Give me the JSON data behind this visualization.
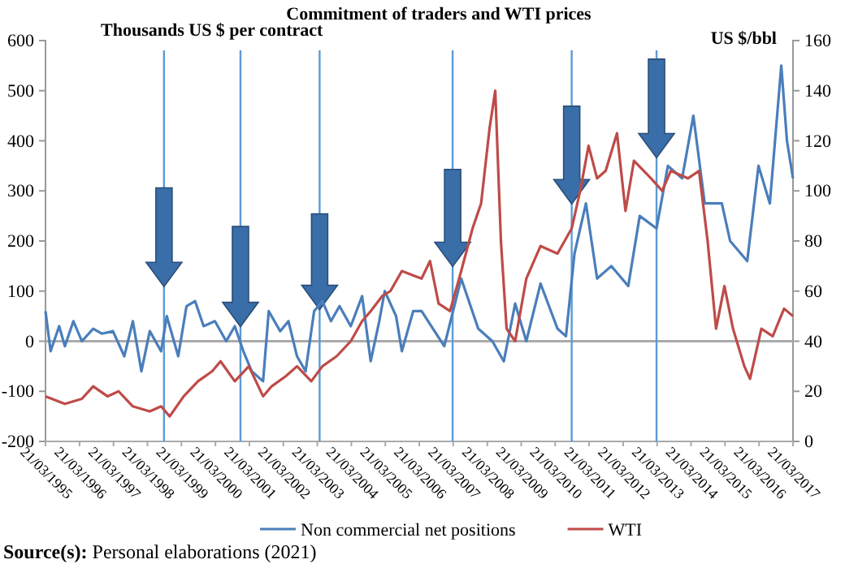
{
  "chart_data": {
    "type": "line",
    "title": "Commitment of traders and WTI prices",
    "ylabel": "Thousands US $ per contract",
    "y2label": "US $/bbl",
    "xlim": [
      "1995-03-21",
      "2017-03-21"
    ],
    "xticks": [
      {
        "value": "1995-03-21",
        "label": "21/03/1995"
      },
      {
        "value": "1996-03-21",
        "label": "21/03/1996"
      },
      {
        "value": "1997-03-21",
        "label": "21/03/1997"
      },
      {
        "value": "1998-03-21",
        "label": "21/03/1998"
      },
      {
        "value": "1999-03-21",
        "label": "21/03/1999"
      },
      {
        "value": "2000-03-21",
        "label": "21/03/2000"
      },
      {
        "value": "2001-03-21",
        "label": "21/03/2001"
      },
      {
        "value": "2002-03-21",
        "label": "21/03/2002"
      },
      {
        "value": "2003-03-21",
        "label": "21/03/2003"
      },
      {
        "value": "2004-03-21",
        "label": "21/03/2004"
      },
      {
        "value": "2005-03-21",
        "label": "21/03/2005"
      },
      {
        "value": "2006-03-21",
        "label": "21/03/2006"
      },
      {
        "value": "2007-03-21",
        "label": "21/03/2007"
      },
      {
        "value": "2008-03-21",
        "label": "21/03/2008"
      },
      {
        "value": "2009-03-21",
        "label": "21/03/2009"
      },
      {
        "value": "2010-03-21",
        "label": "21/03/2010"
      },
      {
        "value": "2011-03-21",
        "label": "21/03/2011"
      },
      {
        "value": "2012-03-21",
        "label": "21/03/2012"
      },
      {
        "value": "2013-03-21",
        "label": "21/03/2013"
      },
      {
        "value": "2014-03-21",
        "label": "21/03/2014"
      },
      {
        "value": "2015-03-21",
        "label": "21/03/2015"
      },
      {
        "value": "2016-03-21",
        "label": "21/03/2016"
      },
      {
        "value": "2017-03-21",
        "label": "21/03/2017"
      }
    ],
    "ylim": [
      -200,
      600
    ],
    "yticks": [
      -200,
      -100,
      0,
      100,
      200,
      300,
      400,
      500,
      600
    ],
    "y2lim": [
      0,
      160
    ],
    "y2ticks": [
      0,
      20,
      40,
      60,
      80,
      100,
      120,
      140,
      160
    ],
    "series": [
      {
        "name": "Non commercial net positions",
        "color": "#4a7ebb",
        "x": [
          "1995-03-21",
          "1995-05",
          "1995-08",
          "1995-10",
          "1996-01",
          "1996-04",
          "1996-08",
          "1996-11",
          "1997-03",
          "1997-07",
          "1997-10",
          "1998-01",
          "1998-04",
          "1998-08",
          "1998-10",
          "1999-02",
          "1999-05",
          "1999-08",
          "1999-11",
          "2000-03",
          "2000-07",
          "2000-10",
          "2001-01",
          "2001-04",
          "2001-08",
          "2001-10",
          "2002-02",
          "2002-05",
          "2002-08",
          "2002-11",
          "2003-02",
          "2003-05",
          "2003-08",
          "2003-11",
          "2004-03",
          "2004-07",
          "2004-10",
          "2005-01",
          "2005-03",
          "2005-07",
          "2005-09",
          "2006-01",
          "2006-04",
          "2006-12",
          "2007-06",
          "2007-12",
          "2008-05",
          "2008-09",
          "2009-01",
          "2009-05",
          "2009-10",
          "2010-04",
          "2010-07",
          "2010-10",
          "2011-02",
          "2011-06",
          "2011-11",
          "2012-05",
          "2012-09",
          "2013-03",
          "2013-07",
          "2013-12",
          "2014-04",
          "2014-08",
          "2015-02",
          "2015-05",
          "2015-11",
          "2016-03",
          "2016-07",
          "2016-11",
          "2017-01",
          "2017-03-21"
        ],
        "values": [
          60,
          -20,
          30,
          -10,
          40,
          0,
          25,
          15,
          20,
          -30,
          40,
          -60,
          20,
          -20,
          50,
          -30,
          70,
          80,
          30,
          40,
          0,
          30,
          -20,
          -60,
          -80,
          60,
          20,
          40,
          -30,
          -60,
          60,
          80,
          40,
          70,
          30,
          90,
          -40,
          40,
          100,
          50,
          -20,
          60,
          60,
          -10,
          125,
          25,
          0,
          -40,
          75,
          0,
          115,
          25,
          10,
          175,
          275,
          125,
          150,
          110,
          250,
          225,
          350,
          325,
          450,
          275,
          275,
          200,
          160,
          350,
          275,
          550,
          400,
          325
        ]
      },
      {
        "name": "WTI",
        "color": "#be4b48",
        "axis": "y2",
        "x": [
          "1995-03-21",
          "1995-10",
          "1996-04",
          "1996-08",
          "1997-01",
          "1997-05",
          "1997-10",
          "1998-04",
          "1998-08",
          "1998-11",
          "1999-04",
          "1999-09",
          "2000-02",
          "2000-05",
          "2000-10",
          "2001-03",
          "2001-08",
          "2001-11",
          "2002-04",
          "2002-08",
          "2003-01",
          "2003-05",
          "2003-10",
          "2004-03",
          "2004-07",
          "2004-10",
          "2005-02",
          "2005-05",
          "2005-09",
          "2006-04",
          "2006-07",
          "2006-10",
          "2007-02",
          "2007-06",
          "2007-10",
          "2008-01",
          "2008-04",
          "2008-06",
          "2008-08",
          "2008-10",
          "2009-01",
          "2009-05",
          "2009-10",
          "2010-04",
          "2010-09",
          "2010-12",
          "2011-03",
          "2011-06",
          "2011-09",
          "2012-01",
          "2012-04",
          "2012-07",
          "2013-01",
          "2013-05",
          "2013-08",
          "2014-02",
          "2014-06",
          "2014-09",
          "2014-12",
          "2015-03",
          "2015-06",
          "2015-10",
          "2015-12",
          "2016-04",
          "2016-08",
          "2016-12",
          "2017-03-21"
        ],
        "values": [
          18,
          15,
          17,
          22,
          18,
          20,
          14,
          12,
          14,
          10,
          18,
          24,
          28,
          32,
          24,
          30,
          18,
          22,
          26,
          30,
          24,
          30,
          34,
          40,
          48,
          52,
          58,
          60,
          68,
          65,
          72,
          55,
          52,
          68,
          85,
          95,
          125,
          140,
          80,
          45,
          40,
          65,
          78,
          75,
          85,
          100,
          118,
          105,
          108,
          123,
          92,
          112,
          105,
          100,
          108,
          105,
          108,
          80,
          45,
          62,
          45,
          30,
          25,
          45,
          42,
          53,
          50
        ]
      }
    ],
    "ref_lines": [
      {
        "axis": "x",
        "value": "1998-09",
        "color": "#5b9bd5"
      },
      {
        "axis": "x",
        "value": "2000-12",
        "color": "#5b9bd5"
      },
      {
        "axis": "x",
        "value": "2003-04",
        "color": "#5b9bd5"
      },
      {
        "axis": "x",
        "value": "2007-03",
        "color": "#5b9bd5"
      },
      {
        "axis": "x",
        "value": "2010-09",
        "color": "#5b9bd5"
      },
      {
        "axis": "x",
        "value": "2013-03",
        "color": "#5b9bd5"
      }
    ],
    "legend": "bottom",
    "grid": false,
    "marker": "none",
    "line_style": "solid",
    "annotations": [
      "Source(s): Personal elaborations (2021)"
    ]
  }
}
